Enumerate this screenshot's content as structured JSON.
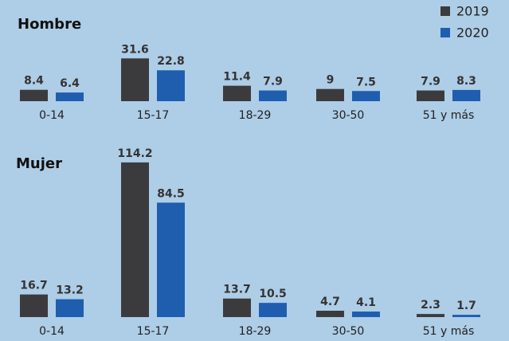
{
  "chart_data": [
    {
      "type": "bar",
      "title": "Hombre",
      "categories": [
        "0-14",
        "15-17",
        "18-29",
        "30-50",
        "51  y más"
      ],
      "series": [
        {
          "name": "2019",
          "color": "#3b3b3d",
          "values": [
            8.4,
            31.6,
            11.4,
            9,
            7.9
          ]
        },
        {
          "name": "2020",
          "color": "#1f5eae",
          "values": [
            6.4,
            22.8,
            7.9,
            7.5,
            8.3
          ]
        }
      ]
    },
    {
      "type": "bar",
      "title": "Mujer",
      "categories": [
        "0-14",
        "15-17",
        "18-29",
        "30-50",
        "51  y más"
      ],
      "series": [
        {
          "color": "#3b3b3d",
          "values": [
            16.7,
            114.2,
            13.7,
            4.7,
            2.3
          ]
        },
        {
          "color": "#1f5eae",
          "values": [
            13.2,
            84.5,
            10.5,
            4.1,
            1.7
          ]
        }
      ]
    }
  ]
}
